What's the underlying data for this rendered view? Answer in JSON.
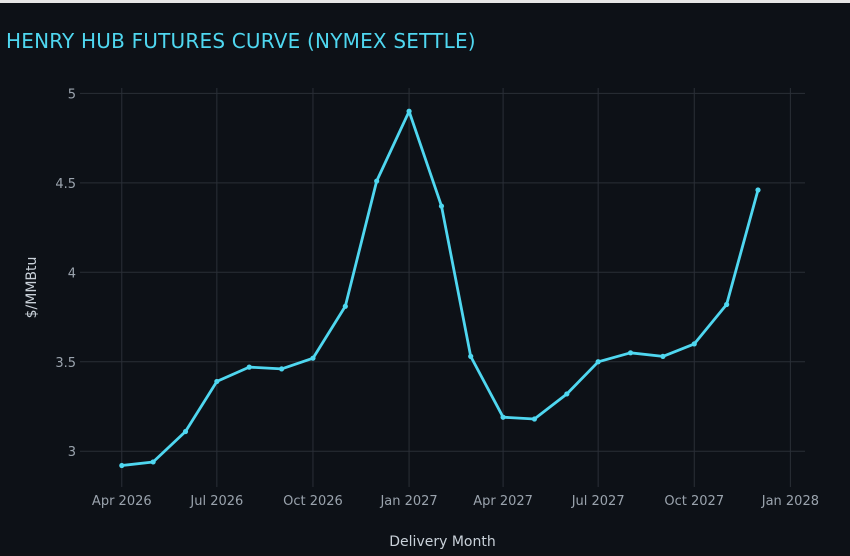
{
  "chart_data": {
    "type": "line",
    "title": "HENRY HUB FUTURES CURVE (NYMEX SETTLE)",
    "xlabel": "Delivery Month",
    "ylabel": "$/MMBtu",
    "x": [
      "2026-04-01",
      "2026-05-01",
      "2026-06-01",
      "2026-07-01",
      "2026-08-01",
      "2026-09-01",
      "2026-10-01",
      "2026-11-01",
      "2026-12-01",
      "2027-01-01",
      "2027-02-01",
      "2027-03-01",
      "2027-04-01",
      "2027-05-01",
      "2027-06-01",
      "2027-07-01",
      "2027-08-01",
      "2027-09-01",
      "2027-10-01",
      "2027-11-01",
      "2027-12-01"
    ],
    "values": [
      2.92,
      2.94,
      3.11,
      3.39,
      3.47,
      3.46,
      3.52,
      3.81,
      4.51,
      4.9,
      4.37,
      3.53,
      3.19,
      3.18,
      3.32,
      3.5,
      3.55,
      3.53,
      3.6,
      3.82,
      4.46
    ],
    "ylim": [
      2.8,
      5.03
    ],
    "xlim": [
      "2026-02-20",
      "2028-01-15"
    ],
    "yticks": [
      3,
      3.5,
      4,
      4.5,
      5
    ],
    "ytick_labels": [
      "3",
      "3.5",
      "4",
      "4.5",
      "5"
    ],
    "xticks": [
      "2026-04-01",
      "2026-07-01",
      "2026-10-01",
      "2027-01-01",
      "2027-04-01",
      "2027-07-01",
      "2027-10-01",
      "2028-01-01"
    ],
    "xtick_labels": [
      "Apr 2026",
      "Jul 2026",
      "Oct 2026",
      "Jan 2027",
      "Apr 2027",
      "Jul 2027",
      "Oct 2027",
      "Jan 2028"
    ],
    "grid": true,
    "legend": "none",
    "colors": {
      "line": "#4fd7f0",
      "grid": "#2a2f37",
      "background": "#0d1117"
    }
  }
}
